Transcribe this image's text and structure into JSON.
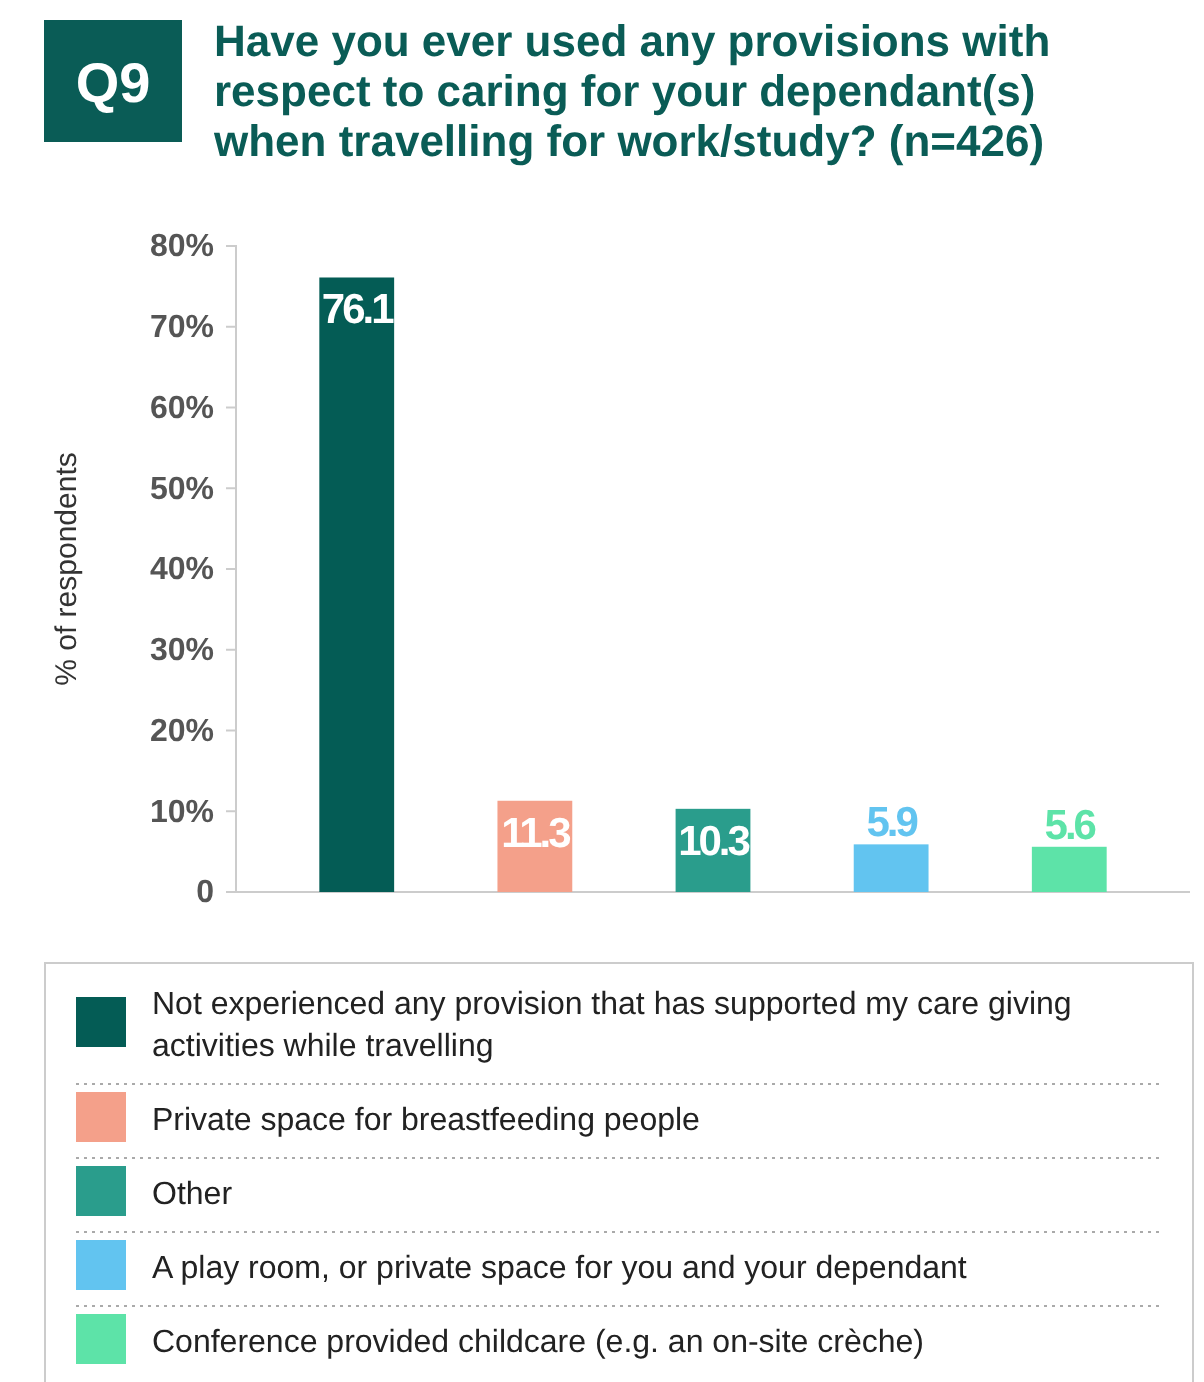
{
  "chart_data": {
    "type": "bar",
    "title": "Have you ever used any provisions with respect to caring for your dependant(s) when travelling for work/study? (n=426)",
    "annotations": [
      "Q9"
    ],
    "ylabel": "% of respondents",
    "categories": [
      null
    ],
    "series": [
      {
        "name": "Not experienced any provision that has supported my care giving activities while travelling",
        "color": "#045c55",
        "values": [
          76.1
        ]
      },
      {
        "name": "Private space for breastfeeding people",
        "color": "#f4a08a",
        "values": [
          11.3
        ]
      },
      {
        "name": "Other",
        "color": "#2a9d8c",
        "values": [
          10.3
        ]
      },
      {
        "name": "A play room, or private space for you and your dependant",
        "color": "#62c4f0",
        "values": [
          5.9
        ]
      },
      {
        "name": "Conference provided childcare (e.g. an on-site crèche)",
        "color": "#5de3a8",
        "values": [
          5.6
        ]
      }
    ],
    "ylim": [
      0,
      80
    ],
    "yticks": [
      0,
      {
        "value": 10,
        "label": "10%"
      },
      {
        "value": 20,
        "label": "20%"
      },
      {
        "value": 30,
        "label": "30%"
      },
      {
        "value": 40,
        "label": "40%"
      },
      {
        "value": 50,
        "label": "50%"
      },
      {
        "value": 60,
        "label": "60%"
      },
      {
        "value": 70,
        "label": "70%"
      },
      {
        "value": 80,
        "label": "80%"
      }
    ],
    "tick_labels": "y",
    "data_labels": true,
    "legend": "bottom",
    "grid": false
  }
}
